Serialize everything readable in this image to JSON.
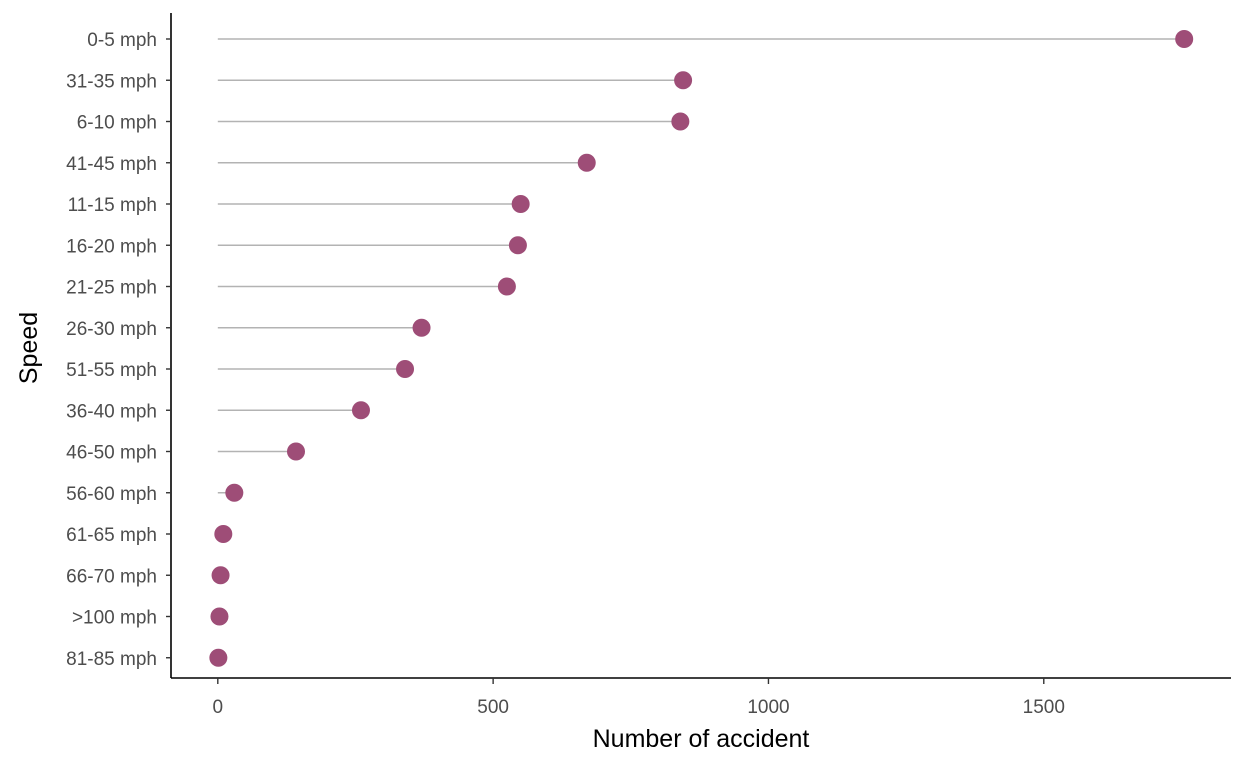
{
  "chart_data": {
    "type": "lollipop",
    "xlabel": "Number of accident",
    "ylabel": "Speed",
    "xlim": [
      -85,
      1840
    ],
    "x_ticks": [
      0,
      500,
      1000,
      1500
    ],
    "grid": false,
    "legend": "none",
    "colors": {
      "point": "#9e4d77",
      "stem": "#b3b3b3",
      "axis": "#000000",
      "tick_label": "#4d4d4d"
    },
    "categories": [
      "0-5 mph",
      "31-35 mph",
      "6-10 mph",
      "41-45 mph",
      "11-15 mph",
      "16-20 mph",
      "21-25 mph",
      "26-30 mph",
      "51-55 mph",
      "36-40 mph",
      "46-50 mph",
      "56-60 mph",
      "61-65 mph",
      "66-70 mph",
      ">100 mph",
      "81-85 mph"
    ],
    "values": [
      1755,
      845,
      840,
      670,
      550,
      545,
      525,
      370,
      340,
      260,
      142,
      30,
      10,
      5,
      3,
      1
    ]
  }
}
